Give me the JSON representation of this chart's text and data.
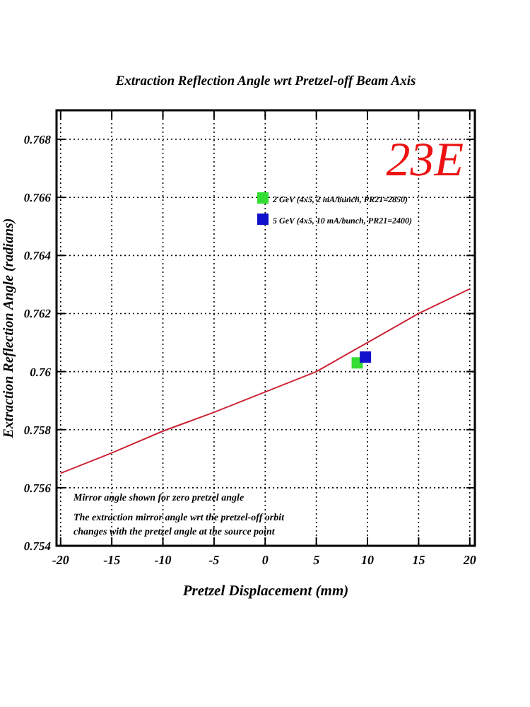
{
  "chart_data": {
    "type": "scatter",
    "title": "Extraction Reflection Angle wrt Pretzel-off Beam Axis",
    "xlabel": "Pretzel Displacement (mm)",
    "ylabel": "Extraction Reflection Angle (radians)",
    "xlim": [
      -20.4,
      20.5
    ],
    "xticks": [
      -20,
      -15,
      -10,
      -5,
      0,
      5,
      10,
      15,
      20
    ],
    "ylim": [
      0.754,
      0.769
    ],
    "yticks": [
      0.754,
      0.756,
      0.758,
      0.76,
      0.762,
      0.764,
      0.766,
      0.768
    ],
    "grid": true,
    "legend": "top right",
    "marker": "square",
    "series": [
      {
        "type": "line",
        "color": "#cc2233",
        "marker": "none",
        "line_style": "solid",
        "x": [
          -20,
          -15,
          -10,
          -5,
          0,
          5,
          10,
          15,
          20
        ],
        "values": [
          0.7565,
          0.7572,
          0.75795,
          0.7586,
          0.7593,
          0.76,
          0.761,
          0.762,
          0.76285
        ]
      },
      {
        "name": "2 GeV (4x5, 2 mA/bunch, PR21=2850)",
        "color": "#33dd33",
        "x": [
          9
        ],
        "values": [
          0.7603
        ]
      },
      {
        "name": "5 GeV (4x5, 10 mA/bunch, PR21=2400)",
        "color": "#1111cc",
        "x": [
          9.8
        ],
        "values": [
          0.7605
        ]
      }
    ],
    "annotations": [
      "23E",
      "Mirror angle shown for zero pretzel angle",
      "The extraction mirror angle wrt the pretzel-off orbit changes with the pretzel angle at the source point"
    ]
  }
}
